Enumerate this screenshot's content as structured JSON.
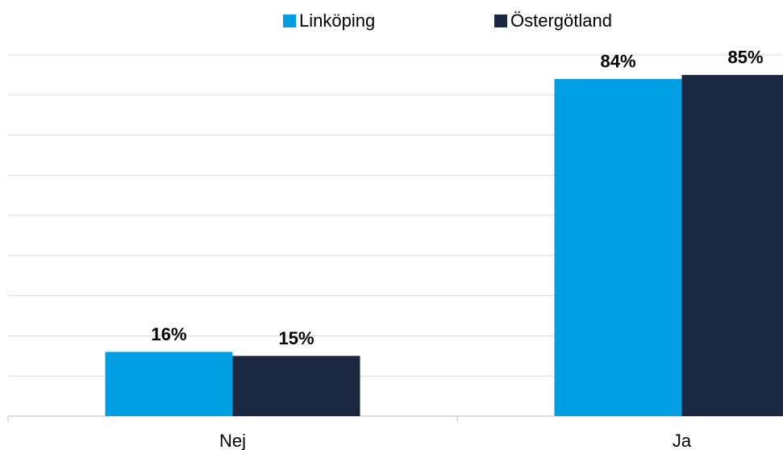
{
  "chart_data": {
    "type": "bar",
    "categories": [
      "Nej",
      "Ja"
    ],
    "series": [
      {
        "name": "Linköping",
        "color": "#009fe3",
        "values": [
          16,
          84
        ],
        "value_labels": [
          "16%",
          "84%"
        ]
      },
      {
        "name": "Östergötland",
        "color": "#1b2640",
        "values": [
          15,
          85
        ],
        "value_labels": [
          "15%",
          "85%"
        ]
      }
    ],
    "ylim": [
      0,
      90
    ],
    "yticks": [
      0,
      10,
      20,
      30,
      40,
      50,
      60,
      70,
      80,
      90
    ],
    "grid": true,
    "legend": "top"
  }
}
